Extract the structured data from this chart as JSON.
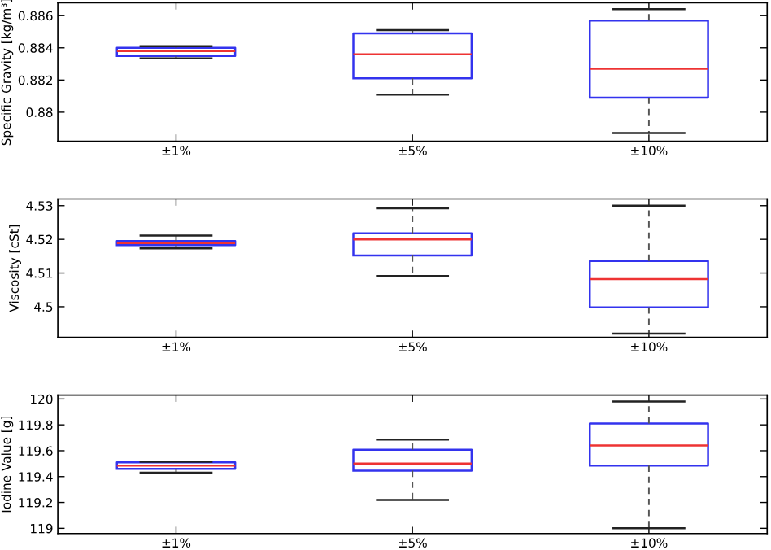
{
  "chart_data": [
    {
      "type": "box",
      "ylabel": "Specific Gravity [kg/m³]",
      "categories": [
        "±1%",
        "±5%",
        "±10%"
      ],
      "ylim": [
        0.8782,
        0.8868
      ],
      "yticks": [
        0.88,
        0.882,
        0.884,
        0.886
      ],
      "grid": false,
      "boxes": [
        {
          "low": 0.88335,
          "q1": 0.8835,
          "median": 0.8838,
          "q3": 0.884,
          "high": 0.8841
        },
        {
          "low": 0.8811,
          "q1": 0.8821,
          "median": 0.8836,
          "q3": 0.8849,
          "high": 0.8851
        },
        {
          "low": 0.8787,
          "q1": 0.8809,
          "median": 0.8827,
          "q3": 0.8857,
          "high": 0.8864
        }
      ]
    },
    {
      "type": "box",
      "ylabel": "Viscosity [cSt]",
      "categories": [
        "±1%",
        "±5%",
        "±10%"
      ],
      "ylim": [
        4.4909,
        4.532
      ],
      "yticks": [
        4.5,
        4.51,
        4.52,
        4.53
      ],
      "grid": false,
      "boxes": [
        {
          "low": 4.5173,
          "q1": 4.5183,
          "median": 4.5189,
          "q3": 4.5195,
          "high": 4.5211
        },
        {
          "low": 4.5091,
          "q1": 4.5152,
          "median": 4.52,
          "q3": 4.5218,
          "high": 4.5292
        },
        {
          "low": 4.492,
          "q1": 4.4998,
          "median": 4.5082,
          "q3": 4.5136,
          "high": 4.53
        }
      ]
    },
    {
      "type": "box",
      "ylabel": "Iodine Value [g]",
      "categories": [
        "±1%",
        "±5%",
        "±10%"
      ],
      "ylim": [
        118.96,
        120.03
      ],
      "yticks": [
        119,
        119.2,
        119.4,
        119.6,
        119.8,
        120
      ],
      "grid": false,
      "boxes": [
        {
          "low": 119.43,
          "q1": 119.46,
          "median": 119.485,
          "q3": 119.51,
          "high": 119.515
        },
        {
          "low": 119.22,
          "q1": 119.446,
          "median": 119.5,
          "q3": 119.607,
          "high": 119.686
        },
        {
          "low": 119.0,
          "q1": 119.485,
          "median": 119.64,
          "q3": 119.81,
          "high": 119.98
        }
      ]
    }
  ]
}
